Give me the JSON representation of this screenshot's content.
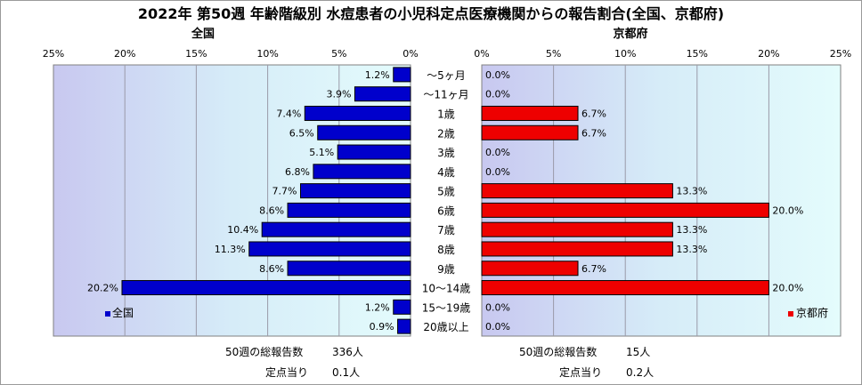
{
  "chart_data": {
    "type": "bar",
    "title": "2022年 第50週 年齢階級別 水痘患者の小児科定点医療機関からの報告割合(全国、京都府)",
    "categories": [
      "～5ヶ月",
      "～11ヶ月",
      "1歳",
      "2歳",
      "3歳",
      "4歳",
      "5歳",
      "6歳",
      "7歳",
      "8歳",
      "9歳",
      "10～14歳",
      "15～19歳",
      "20歳以上"
    ],
    "panels": [
      {
        "heading": "全国",
        "legend": "全国",
        "legend_position": "bottom-left",
        "orientation": "reversed",
        "color": "#0000cc",
        "xlim": [
          0,
          25
        ],
        "ticks": [
          "25%",
          "20%",
          "15%",
          "10%",
          "5%",
          "0%"
        ],
        "values": [
          1.2,
          3.9,
          7.4,
          6.5,
          5.1,
          6.8,
          7.7,
          8.6,
          10.4,
          11.3,
          8.6,
          20.2,
          1.2,
          0.9
        ],
        "labels": [
          "1.2%",
          "3.9%",
          "7.4%",
          "6.5%",
          "5.1%",
          "6.8%",
          "7.7%",
          "8.6%",
          "10.4%",
          "11.3%",
          "8.6%",
          "20.2%",
          "1.2%",
          "0.9%"
        ]
      },
      {
        "heading": "京都府",
        "legend": "京都府",
        "legend_position": "bottom-right",
        "orientation": "normal",
        "color": "#ee0000",
        "xlim": [
          0,
          25
        ],
        "ticks": [
          "0%",
          "5%",
          "10%",
          "15%",
          "20%",
          "25%"
        ],
        "values": [
          0.0,
          0.0,
          6.7,
          6.7,
          0.0,
          0.0,
          13.3,
          20.0,
          13.3,
          13.3,
          6.7,
          20.0,
          0.0,
          0.0
        ],
        "labels": [
          "0.0%",
          "0.0%",
          "6.7%",
          "6.7%",
          "0.0%",
          "0.0%",
          "13.3%",
          "20.0%",
          "13.3%",
          "13.3%",
          "6.7%",
          "20.0%",
          "0.0%",
          "0.0%"
        ]
      }
    ],
    "grid": "vertical"
  },
  "footer": {
    "national": {
      "total_label": "50週の総報告数",
      "total_value": "336人",
      "per_label": "定点当り",
      "per_value": "0.1人"
    },
    "kyoto": {
      "total_label": "50週の総報告数",
      "total_value": "15人",
      "per_label": "定点当り",
      "per_value": "0.2人"
    }
  }
}
